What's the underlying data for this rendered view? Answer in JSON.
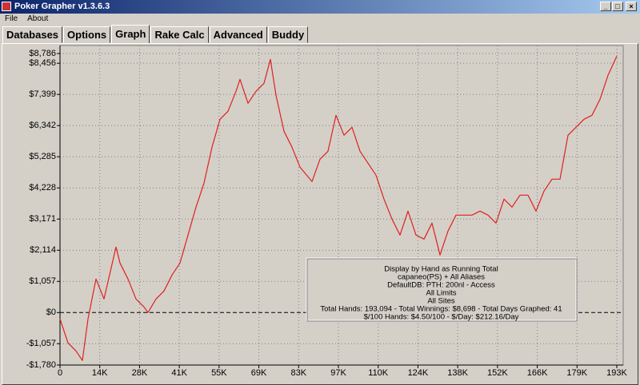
{
  "window_title": "Poker Grapher v1.3.6.3",
  "menu": [
    "File",
    "About"
  ],
  "tabs": [
    "Databases",
    "Options",
    "Graph",
    "Rake Calc",
    "Advanced",
    "Buddy"
  ],
  "chart_data": {
    "type": "line",
    "color": "#e02020",
    "grid": true,
    "xlim": [
      0,
      193094
    ],
    "ylim": [
      -1780,
      8786
    ],
    "xticks": [
      0,
      {
        "value": 13792,
        "label": "14K"
      },
      {
        "value": 27585,
        "label": "28K"
      },
      {
        "value": 41377,
        "label": "41K"
      },
      {
        "value": 55170,
        "label": "55K"
      },
      {
        "value": 68962,
        "label": "69K"
      },
      {
        "value": 82755,
        "label": "83K"
      },
      {
        "value": 96547,
        "label": "97K"
      },
      {
        "value": 110339,
        "label": "110K"
      },
      {
        "value": 124132,
        "label": "124K"
      },
      {
        "value": 137924,
        "label": "138K"
      },
      {
        "value": 151717,
        "label": "152K"
      },
      {
        "value": 165509,
        "label": "166K"
      },
      {
        "value": 179302,
        "label": "179K"
      },
      {
        "value": 193094,
        "label": "193K"
      }
    ],
    "yticks": [
      {
        "value": -1780,
        "label": "-$1,780"
      },
      {
        "value": -1057,
        "label": "-$1,057"
      },
      {
        "value": 0,
        "label": "$0"
      },
      {
        "value": 1057,
        "label": "$1,057"
      },
      {
        "value": 2114,
        "label": "$2,114"
      },
      {
        "value": 3171,
        "label": "$3,171"
      },
      {
        "value": 4228,
        "label": "$4,228"
      },
      {
        "value": 5285,
        "label": "$5,285"
      },
      {
        "value": 6342,
        "label": "$6,342"
      },
      {
        "value": 7399,
        "label": "$7,399"
      },
      {
        "value": 8456,
        "label": "$8,456"
      },
      {
        "value": 8786,
        "label": "$8,786"
      }
    ],
    "x": [
      0,
      2774,
      5549,
      7768,
      9710,
      12484,
      15259,
      19420,
      20807,
      23582,
      26356,
      29130,
      30517,
      33292,
      36066,
      38841,
      41615,
      44389,
      47164,
      49938,
      52712,
      55487,
      58261,
      61036,
      62423,
      65197,
      67971,
      70746,
      72964,
      74906,
      77681,
      80455,
      83230,
      87391,
      90166,
      92940,
      95714,
      98489,
      101263,
      104037,
      106812,
      109586,
      112361,
      115135,
      117909,
      120684,
      123458,
      126233,
      129007,
      131781,
      134556,
      137330,
      140104,
      142879,
      145653,
      148428,
      151202,
      153976,
      156751,
      159525,
      162300,
      165074,
      167848,
      170623,
      173397,
      176172,
      178946,
      181720,
      184495,
      187269,
      190044,
      193094
    ],
    "values": [
      -217,
      -1029,
      -1300,
      -1625,
      -217,
      1138,
      460,
      2221,
      1680,
      1138,
      460,
      190,
      0,
      460,
      731,
      1273,
      1680,
      2628,
      3576,
      4389,
      5608,
      6556,
      6827,
      7504,
      7910,
      7098,
      7504,
      7775,
      8588,
      7368,
      6149,
      5608,
      4930,
      4443,
      5201,
      5472,
      6691,
      6014,
      6285,
      5472,
      5066,
      4659,
      3847,
      3170,
      2628,
      3440,
      2628,
      2492,
      3034,
      1950,
      2763,
      3305,
      3305,
      3305,
      3440,
      3305,
      3034,
      3847,
      3576,
      3982,
      3982,
      3440,
      4118,
      4524,
      4524,
      6014,
      6285,
      6556,
      6691,
      7233,
      8046,
      8698
    ],
    "annotations": [
      "Display by Hand as Running Total",
      "capaneo(PS) + All Aliases",
      "DefaultDB: PTH: 200nl  - Access",
      "All Limits",
      "All Sites",
      "Total Hands: 193,094 - Total Winnings: $8,698 - Total Days Graphed: 41",
      "$/100 Hands: $4.50/100 - $/Day: $212.16/Day"
    ]
  }
}
